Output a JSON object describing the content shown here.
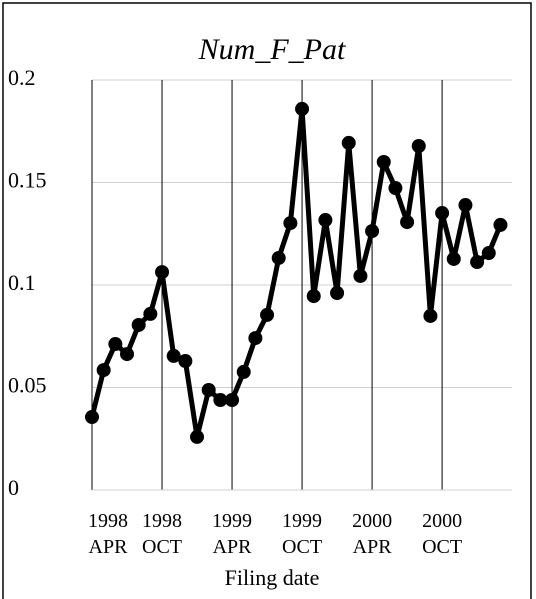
{
  "chart_data": {
    "type": "line",
    "title": "Num_F_Pat",
    "x_label": "Filing date",
    "categories": [
      "1998 APR",
      null,
      null,
      null,
      null,
      null,
      "1998 OCT",
      null,
      null,
      null,
      null,
      null,
      "1999 APR",
      null,
      null,
      null,
      null,
      null,
      "1999 OCT",
      null,
      null,
      null,
      null,
      null,
      "2000 APR",
      null,
      null,
      null,
      null,
      null,
      "2000 OCT",
      null,
      null,
      null,
      null,
      null
    ],
    "series": [
      {
        "name": "Num_F_Pat",
        "color": "#000000",
        "values": [
          0.0356,
          0.0585,
          0.0712,
          0.0663,
          0.0805,
          0.0859,
          0.1063,
          0.0654,
          0.0629,
          0.0259,
          0.0488,
          0.0439,
          0.0439,
          0.0576,
          0.0741,
          0.0854,
          0.1132,
          0.1302,
          0.1859,
          0.0946,
          0.1317,
          0.0961,
          0.1693,
          0.1044,
          0.1263,
          0.16,
          0.1473,
          0.1307,
          0.1678,
          0.0849,
          0.1351,
          0.1127,
          0.139,
          0.1112,
          0.1156,
          0.1293
        ]
      }
    ],
    "ylim": [
      0,
      0.2
    ],
    "yticks": [
      0,
      0.05,
      0.1,
      0.15,
      0.2
    ],
    "grid": true
  }
}
